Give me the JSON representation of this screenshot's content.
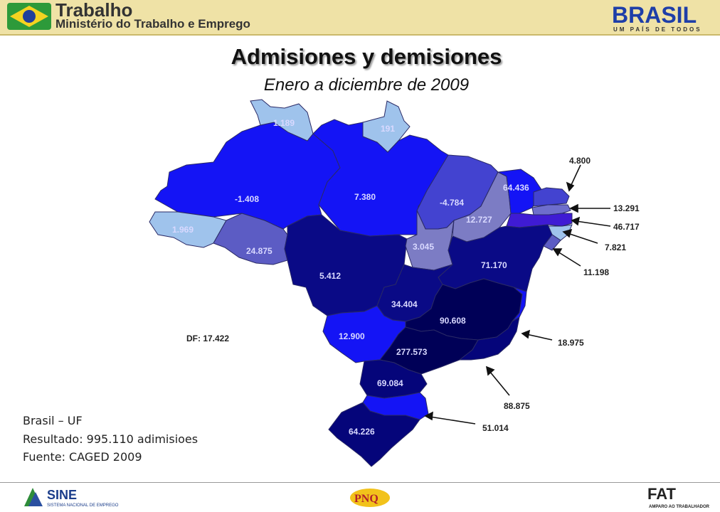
{
  "header": {
    "line1": "Trabalho",
    "line2": "Ministério do Trabalho e Emprego",
    "brand": "BRASIL",
    "brand_sub": "UM PAÍS DE TODOS"
  },
  "title": "Admisiones y demisiones",
  "subtitle": "Enero a diciembre de 2009",
  "states": {
    "rr": "1.189",
    "ap": "191",
    "am": "-1.408",
    "pa": "7.380",
    "ma": "-4.784",
    "ce": "64.436",
    "pi": "12.727",
    "ac": "1.969",
    "ro": "24.875",
    "to": "3.045",
    "mt": "5.412",
    "ba": "71.170",
    "go": "34.404",
    "mg": "90.608",
    "ms": "12.900",
    "sp": "277.573",
    "pr": "69.084",
    "rs": "64.226"
  },
  "callouts": {
    "rn": "4.800",
    "pb": "13.291",
    "pe": "46.717",
    "al": "7.821",
    "se": "11.198",
    "es": "18.975",
    "rj": "88.875",
    "sc": "51.014",
    "df": "DF: 17.422"
  },
  "info": {
    "line1": "Brasil – UF",
    "line2": "Resultado: 995.110   adimisioes",
    "line3": "Fuente: CAGED 2009"
  },
  "footer": {
    "sine": "SINE",
    "sine_sub": "SISTEMA NACIONAL DE EMPREGO",
    "pnq": "PNQ",
    "fat": "FAT",
    "fat_sub": "AMPARO AO TRABALHADOR"
  },
  "colors": {
    "light": "#9fc3ec",
    "bright": "#1414f5",
    "mid": "#5c5cc4",
    "gray": "#7c7cc4",
    "navy": "#0a0a86",
    "dark": "#000057",
    "navy2": "#05057a"
  }
}
